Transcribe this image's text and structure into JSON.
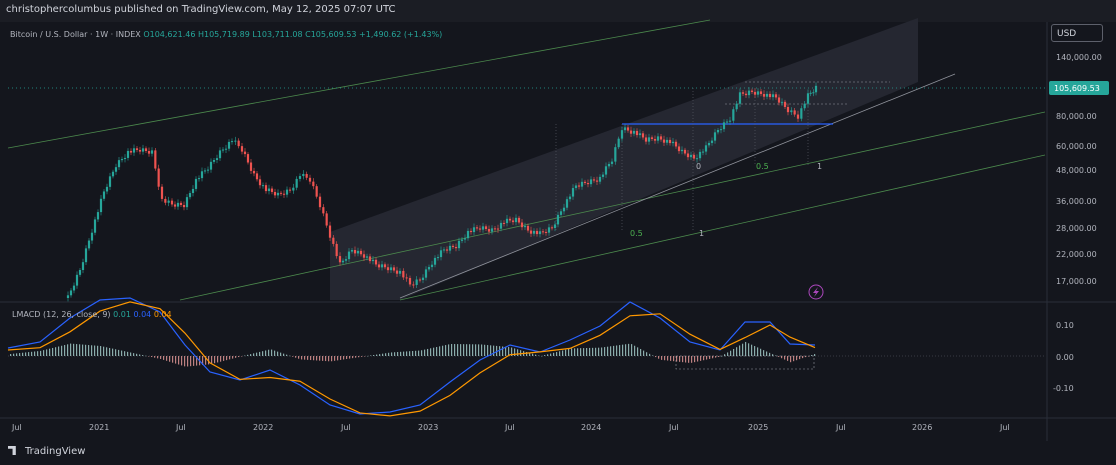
{
  "publish_text": "christophercolumbus published on TradingView.com, May 12, 2025 07:07 UTC",
  "symbol": {
    "title": "Bitcoin / U.S. Dollar · 1W · INDEX",
    "ohlc": "O104,621.46 H105,719.89 L103,711.08 C105,609.53 +1,490.62 (+1.43%)"
  },
  "currency_button": "USD",
  "price_axis": {
    "labels": [
      "140,000.00",
      "80,000.00",
      "60,000.00",
      "48,000.00",
      "36,000.00",
      "28,000.00",
      "22,000.00",
      "17,000.00"
    ],
    "current_price": "105,609.53"
  },
  "time_axis": {
    "labels": [
      "Jul",
      "2021",
      "Jul",
      "2022",
      "Jul",
      "2023",
      "Jul",
      "2024",
      "Jul",
      "2025",
      "Jul",
      "2026",
      "Jul"
    ]
  },
  "annotations": {
    "fib_a": [
      "0.5",
      "1"
    ],
    "fib_b": [
      "0",
      "0.5",
      "1"
    ]
  },
  "macd": {
    "title": "LMACD (12, 26, close, 9)",
    "values": [
      "0.01",
      "0.04",
      "0.04"
    ],
    "axis_labels": [
      "0.10",
      "0.00",
      "-0.10"
    ]
  },
  "colors": {
    "up": "#26a69a",
    "down": "#ef5350",
    "macd_line": "#2962ff",
    "signal_line": "#ff9800",
    "channel": "#9598a1",
    "price_tag": "#26a69a",
    "support_line": "#2962ff"
  },
  "footer": {
    "brand": "TradingView"
  }
}
